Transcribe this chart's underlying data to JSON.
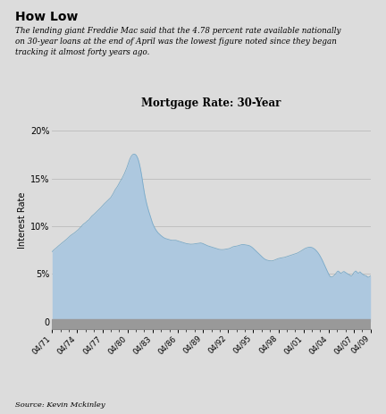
{
  "title": "Mortgage Rate: 30-Year",
  "header": "How Low",
  "subtitle": "The lending giant Freddie Mac said that the 4.78 percent rate available nationally\non 30-year loans at the end of April was the lowest figure noted since they began\ntracking it almost forty years ago.",
  "source": "Source: Kevin Mckinley",
  "ylabel": "Interest Rate",
  "yticks": [
    0,
    5,
    10,
    15,
    20
  ],
  "ytick_labels": [
    "0",
    "5%",
    "10%",
    "15%",
    "20%"
  ],
  "xtick_labels": [
    "04/71",
    "04/74",
    "04/77",
    "04/80",
    "04/83",
    "04/86",
    "04/89",
    "04/92",
    "04/95",
    "04/98",
    "04/01",
    "04/04",
    "04/07",
    "04/09"
  ],
  "bg_color": "#dcdcdc",
  "fill_color": "#adc8df",
  "fill_edge_color": "#7aaac8",
  "gray_bar_color": "#999999",
  "grid_color": "#bbbbbb",
  "ylim": [
    -0.8,
    22
  ],
  "years_from_start": [
    0,
    3,
    6,
    9,
    12,
    15,
    18,
    21,
    24,
    27,
    30,
    33,
    36,
    38
  ],
  "total_years": 38,
  "data": [
    7.33,
    7.38,
    7.46,
    7.51,
    7.55,
    7.6,
    7.66,
    7.72,
    7.78,
    7.84,
    7.89,
    7.94,
    7.99,
    8.04,
    8.09,
    8.14,
    8.2,
    8.26,
    8.3,
    8.35,
    8.4,
    8.46,
    8.5,
    8.55,
    8.61,
    8.66,
    8.72,
    8.78,
    8.84,
    8.9,
    8.96,
    9.01,
    9.06,
    9.1,
    9.14,
    9.18,
    9.22,
    9.26,
    9.31,
    9.36,
    9.41,
    9.45,
    9.5,
    9.56,
    9.62,
    9.68,
    9.75,
    9.82,
    9.89,
    9.96,
    10.04,
    10.1,
    10.16,
    10.22,
    10.26,
    10.3,
    10.35,
    10.4,
    10.46,
    10.52,
    10.58,
    10.62,
    10.66,
    10.74,
    10.82,
    10.9,
    10.98,
    11.05,
    11.1,
    11.15,
    11.2,
    11.26,
    11.32,
    11.38,
    11.44,
    11.5,
    11.56,
    11.62,
    11.68,
    11.75,
    11.81,
    11.87,
    11.93,
    12.0,
    12.06,
    12.13,
    12.2,
    12.27,
    12.34,
    12.4,
    12.46,
    12.52,
    12.58,
    12.64,
    12.7,
    12.76,
    12.82,
    12.88,
    12.94,
    13.0,
    13.1,
    13.2,
    13.3,
    13.4,
    13.52,
    13.64,
    13.77,
    13.88,
    13.96,
    14.04,
    14.14,
    14.24,
    14.36,
    14.48,
    14.59,
    14.7,
    14.8,
    14.9,
    15.0,
    15.12,
    15.24,
    15.36,
    15.5,
    15.65,
    15.8,
    15.95,
    16.1,
    16.28,
    16.48,
    16.66,
    16.84,
    17.0,
    17.14,
    17.26,
    17.36,
    17.44,
    17.5,
    17.54,
    17.56,
    17.56,
    17.54,
    17.5,
    17.44,
    17.34,
    17.22,
    17.08,
    16.88,
    16.66,
    16.4,
    16.1,
    15.78,
    15.42,
    15.04,
    14.64,
    14.22,
    13.82,
    13.46,
    13.14,
    12.84,
    12.56,
    12.3,
    12.06,
    11.84,
    11.62,
    11.42,
    11.22,
    11.02,
    10.82,
    10.62,
    10.44,
    10.26,
    10.12,
    9.98,
    9.86,
    9.75,
    9.65,
    9.55,
    9.46,
    9.38,
    9.3,
    9.24,
    9.18,
    9.12,
    9.06,
    9.01,
    8.96,
    8.91,
    8.86,
    8.82,
    8.78,
    8.75,
    8.72,
    8.7,
    8.68,
    8.66,
    8.64,
    8.62,
    8.6,
    8.58,
    8.56,
    8.54,
    8.53,
    8.52,
    8.52,
    8.52,
    8.52,
    8.52,
    8.52,
    8.52,
    8.52,
    8.5,
    8.48,
    8.46,
    8.44,
    8.42,
    8.4,
    8.38,
    8.36,
    8.34,
    8.32,
    8.3,
    8.28,
    8.26,
    8.24,
    8.22,
    8.2,
    8.18,
    8.17,
    8.16,
    8.15,
    8.14,
    8.13,
    8.13,
    8.12,
    8.11,
    8.11,
    8.11,
    8.11,
    8.12,
    8.13,
    8.14,
    8.15,
    8.16,
    8.17,
    8.18,
    8.19,
    8.2,
    8.22,
    8.23,
    8.24,
    8.25,
    8.24,
    8.23,
    8.21,
    8.19,
    8.17,
    8.14,
    8.11,
    8.08,
    8.05,
    8.02,
    7.99,
    7.96,
    7.94,
    7.92,
    7.9,
    7.88,
    7.86,
    7.84,
    7.82,
    7.8,
    7.78,
    7.76,
    7.74,
    7.72,
    7.7,
    7.68,
    7.66,
    7.64,
    7.62,
    7.6,
    7.58,
    7.57,
    7.56,
    7.55,
    7.54,
    7.54,
    7.54,
    7.54,
    7.54,
    7.55,
    7.56,
    7.57,
    7.58,
    7.59,
    7.6,
    7.61,
    7.62,
    7.63,
    7.65,
    7.67,
    7.7,
    7.73,
    7.76,
    7.79,
    7.82,
    7.85,
    7.86,
    7.87,
    7.88,
    7.89,
    7.9,
    7.91,
    7.93,
    7.95,
    7.97,
    7.99,
    8.01,
    8.03,
    8.05,
    8.06,
    8.07,
    8.07,
    8.07,
    8.07,
    8.06,
    8.05,
    8.04,
    8.03,
    8.02,
    8.01,
    8.0,
    7.98,
    7.96,
    7.93,
    7.9,
    7.86,
    7.82,
    7.77,
    7.72,
    7.66,
    7.6,
    7.54,
    7.48,
    7.42,
    7.36,
    7.3,
    7.24,
    7.18,
    7.12,
    7.06,
    7.0,
    6.94,
    6.88,
    6.82,
    6.76,
    6.7,
    6.65,
    6.6,
    6.56,
    6.52,
    6.49,
    6.46,
    6.44,
    6.42,
    6.4,
    6.39,
    6.38,
    6.37,
    6.36,
    6.36,
    6.36,
    6.37,
    6.38,
    6.4,
    6.42,
    6.44,
    6.47,
    6.5,
    6.53,
    6.56,
    6.58,
    6.6,
    6.62,
    6.64,
    6.65,
    6.66,
    6.67,
    6.67,
    6.68,
    6.69,
    6.7,
    6.72,
    6.74,
    6.76,
    6.78,
    6.8,
    6.82,
    6.84,
    6.86,
    6.88,
    6.9,
    6.92,
    6.94,
    6.96,
    6.98,
    7.0,
    7.02,
    7.04,
    7.06,
    7.08,
    7.1,
    7.12,
    7.14,
    7.17,
    7.2,
    7.23,
    7.26,
    7.3,
    7.34,
    7.38,
    7.42,
    7.46,
    7.5,
    7.54,
    7.58,
    7.62,
    7.65,
    7.68,
    7.71,
    7.73,
    7.75,
    7.77,
    7.78,
    7.79,
    7.8,
    7.8,
    7.79,
    7.78,
    7.76,
    7.73,
    7.7,
    7.66,
    7.62,
    7.57,
    7.51,
    7.45,
    7.38,
    7.31,
    7.23,
    7.14,
    7.05,
    6.95,
    6.84,
    6.73,
    6.61,
    6.49,
    6.36,
    6.23,
    6.09,
    5.95,
    5.81,
    5.67,
    5.53,
    5.39,
    5.26,
    5.13,
    5.0,
    4.89,
    4.78,
    4.71,
    4.68,
    4.67,
    4.68,
    4.71,
    4.75,
    4.8,
    4.86,
    4.93,
    5.01,
    5.09,
    5.17,
    5.25,
    5.29,
    5.26,
    5.21,
    5.14,
    5.09,
    5.05,
    5.09,
    5.14,
    5.19,
    5.22,
    5.25,
    5.21,
    5.17,
    5.13,
    5.09,
    5.05,
    5.01,
    4.97,
    4.93,
    4.89,
    4.85,
    4.81,
    4.78,
    4.78,
    4.84,
    4.94,
    5.06,
    5.14,
    5.2,
    5.26,
    5.3,
    5.25,
    5.19,
    5.12,
    5.06,
    5.09,
    5.16,
    5.21,
    5.16,
    5.09,
    5.04,
    4.99,
    4.94,
    4.9,
    4.86,
    4.84,
    4.83,
    4.81,
    4.78,
    4.71,
    4.67,
    4.63,
    4.67,
    4.71,
    4.75,
    4.78
  ]
}
